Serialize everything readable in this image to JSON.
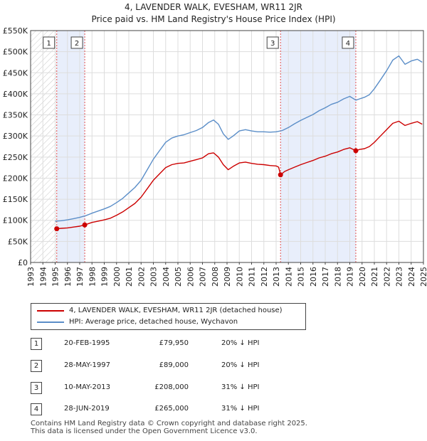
{
  "chart_data": {
    "type": "line",
    "title": "4, LAVENDER WALK, EVESHAM, WR11 2JR",
    "subtitle": "Price paid vs. HM Land Registry's House Price Index (HPI)",
    "xlabel": "",
    "ylabel": "",
    "xlim": [
      1993,
      2025
    ],
    "ylim": [
      0,
      550000
    ],
    "x_ticks": [
      "1993",
      "1994",
      "1995",
      "1996",
      "1997",
      "1998",
      "1999",
      "2000",
      "2001",
      "2002",
      "2003",
      "2004",
      "2005",
      "2006",
      "2007",
      "2008",
      "2009",
      "2010",
      "2011",
      "2012",
      "2013",
      "2014",
      "2015",
      "2016",
      "2017",
      "2018",
      "2019",
      "2020",
      "2021",
      "2022",
      "2023",
      "2024",
      "2025"
    ],
    "y_ticks": [
      {
        "value": 0,
        "label": "£0"
      },
      {
        "value": 50000,
        "label": "£50K"
      },
      {
        "value": 100000,
        "label": "£100K"
      },
      {
        "value": 150000,
        "label": "£150K"
      },
      {
        "value": 200000,
        "label": "£200K"
      },
      {
        "value": 250000,
        "label": "£250K"
      },
      {
        "value": 300000,
        "label": "£300K"
      },
      {
        "value": 350000,
        "label": "£350K"
      },
      {
        "value": 400000,
        "label": "£400K"
      },
      {
        "value": 450000,
        "label": "£450K"
      },
      {
        "value": 500000,
        "label": "£500K"
      },
      {
        "value": 550000,
        "label": "£550K"
      }
    ],
    "series": [
      {
        "name": "4, LAVENDER WALK, EVESHAM, WR11 2JR (detached house)",
        "color": "#cc0000",
        "points": [
          [
            1995.13,
            79950
          ],
          [
            1995.5,
            81000
          ],
          [
            1996.0,
            82000
          ],
          [
            1996.5,
            84000
          ],
          [
            1997.0,
            86000
          ],
          [
            1997.41,
            89000
          ],
          [
            1998.0,
            95000
          ],
          [
            1998.5,
            98000
          ],
          [
            1999.0,
            101000
          ],
          [
            1999.5,
            105000
          ],
          [
            2000.0,
            112000
          ],
          [
            2000.5,
            120000
          ],
          [
            2001.0,
            130000
          ],
          [
            2001.5,
            140000
          ],
          [
            2002.0,
            155000
          ],
          [
            2002.5,
            175000
          ],
          [
            2003.0,
            195000
          ],
          [
            2003.5,
            210000
          ],
          [
            2004.0,
            225000
          ],
          [
            2004.5,
            232000
          ],
          [
            2005.0,
            235000
          ],
          [
            2005.5,
            236000
          ],
          [
            2006.0,
            240000
          ],
          [
            2006.5,
            244000
          ],
          [
            2007.0,
            248000
          ],
          [
            2007.5,
            258000
          ],
          [
            2007.9,
            260000
          ],
          [
            2008.3,
            250000
          ],
          [
            2008.7,
            232000
          ],
          [
            2009.1,
            220000
          ],
          [
            2009.5,
            228000
          ],
          [
            2010.0,
            236000
          ],
          [
            2010.5,
            238000
          ],
          [
            2011.0,
            235000
          ],
          [
            2011.5,
            233000
          ],
          [
            2012.0,
            232000
          ],
          [
            2012.5,
            230000
          ],
          [
            2013.0,
            229000
          ],
          [
            2013.2,
            226000
          ],
          [
            2013.36,
            208000
          ],
          [
            2013.7,
            216000
          ],
          [
            2014.0,
            220000
          ],
          [
            2014.5,
            226000
          ],
          [
            2015.0,
            232000
          ],
          [
            2015.5,
            237000
          ],
          [
            2016.0,
            242000
          ],
          [
            2016.5,
            248000
          ],
          [
            2017.0,
            252000
          ],
          [
            2017.5,
            258000
          ],
          [
            2018.0,
            262000
          ],
          [
            2018.5,
            268000
          ],
          [
            2019.0,
            272000
          ],
          [
            2019.49,
            265000
          ],
          [
            2019.8,
            268000
          ],
          [
            2020.2,
            270000
          ],
          [
            2020.6,
            275000
          ],
          [
            2021.0,
            285000
          ],
          [
            2021.5,
            300000
          ],
          [
            2022.0,
            315000
          ],
          [
            2022.5,
            330000
          ],
          [
            2023.0,
            335000
          ],
          [
            2023.5,
            325000
          ],
          [
            2024.0,
            330000
          ],
          [
            2024.5,
            334000
          ],
          [
            2024.9,
            328000
          ]
        ]
      },
      {
        "name": "HPI: Average price, detached house, Wychavon",
        "color": "#5b8ec8",
        "points": [
          [
            1995.0,
            98000
          ],
          [
            1995.5,
            99000
          ],
          [
            1996.0,
            101000
          ],
          [
            1996.5,
            104000
          ],
          [
            1997.0,
            107000
          ],
          [
            1997.5,
            111000
          ],
          [
            1998.0,
            117000
          ],
          [
            1998.5,
            122000
          ],
          [
            1999.0,
            127000
          ],
          [
            1999.5,
            133000
          ],
          [
            2000.0,
            142000
          ],
          [
            2000.5,
            152000
          ],
          [
            2001.0,
            165000
          ],
          [
            2001.5,
            178000
          ],
          [
            2002.0,
            195000
          ],
          [
            2002.5,
            220000
          ],
          [
            2003.0,
            245000
          ],
          [
            2003.5,
            265000
          ],
          [
            2004.0,
            285000
          ],
          [
            2004.5,
            295000
          ],
          [
            2005.0,
            300000
          ],
          [
            2005.5,
            303000
          ],
          [
            2006.0,
            308000
          ],
          [
            2006.5,
            313000
          ],
          [
            2007.0,
            320000
          ],
          [
            2007.5,
            332000
          ],
          [
            2007.9,
            338000
          ],
          [
            2008.3,
            328000
          ],
          [
            2008.7,
            305000
          ],
          [
            2009.1,
            292000
          ],
          [
            2009.5,
            300000
          ],
          [
            2010.0,
            312000
          ],
          [
            2010.5,
            315000
          ],
          [
            2011.0,
            312000
          ],
          [
            2011.5,
            310000
          ],
          [
            2012.0,
            310000
          ],
          [
            2012.5,
            309000
          ],
          [
            2013.0,
            310000
          ],
          [
            2013.5,
            313000
          ],
          [
            2014.0,
            320000
          ],
          [
            2014.5,
            329000
          ],
          [
            2015.0,
            337000
          ],
          [
            2015.5,
            344000
          ],
          [
            2016.0,
            351000
          ],
          [
            2016.5,
            360000
          ],
          [
            2017.0,
            367000
          ],
          [
            2017.5,
            375000
          ],
          [
            2018.0,
            380000
          ],
          [
            2018.5,
            388000
          ],
          [
            2019.0,
            394000
          ],
          [
            2019.5,
            385000
          ],
          [
            2019.8,
            388000
          ],
          [
            2020.2,
            392000
          ],
          [
            2020.6,
            398000
          ],
          [
            2021.0,
            412000
          ],
          [
            2021.5,
            433000
          ],
          [
            2022.0,
            455000
          ],
          [
            2022.5,
            480000
          ],
          [
            2023.0,
            490000
          ],
          [
            2023.5,
            470000
          ],
          [
            2024.0,
            478000
          ],
          [
            2024.5,
            482000
          ],
          [
            2024.9,
            475000
          ]
        ]
      }
    ],
    "sales": [
      {
        "label": "1",
        "x": 1995.13,
        "price": 79950
      },
      {
        "label": "2",
        "x": 1997.41,
        "price": 89000
      },
      {
        "label": "3",
        "x": 2013.36,
        "price": 208000
      },
      {
        "label": "4",
        "x": 2019.49,
        "price": 265000
      }
    ],
    "shaded_spans": [
      [
        1995.13,
        1997.41
      ],
      [
        2013.36,
        2019.49
      ]
    ],
    "hatched_span": [
      1993,
      1995.13
    ]
  },
  "legend": {
    "property_label": "4, LAVENDER WALK, EVESHAM, WR11 2JR (detached house)",
    "hpi_label": "HPI: Average price, detached house, Wychavon"
  },
  "sales_table": [
    {
      "num": "1",
      "date": "20-FEB-1995",
      "price": "£79,950",
      "hpi": "20% ↓ HPI"
    },
    {
      "num": "2",
      "date": "28-MAY-1997",
      "price": "£89,000",
      "hpi": "20% ↓ HPI"
    },
    {
      "num": "3",
      "date": "10-MAY-2013",
      "price": "£208,000",
      "hpi": "31% ↓ HPI"
    },
    {
      "num": "4",
      "date": "28-JUN-2019",
      "price": "£265,000",
      "hpi": "31% ↓ HPI"
    }
  ],
  "footer": {
    "line1": "Contains HM Land Registry data © Crown copyright and database right 2025.",
    "line2": "This data is licensed under the Open Government Licence v3.0."
  },
  "colors": {
    "property": "#cc0000",
    "hpi": "#5b8ec8",
    "shade": "#e8eefb",
    "grid": "#dddddd",
    "marker_line": "#e05050"
  }
}
